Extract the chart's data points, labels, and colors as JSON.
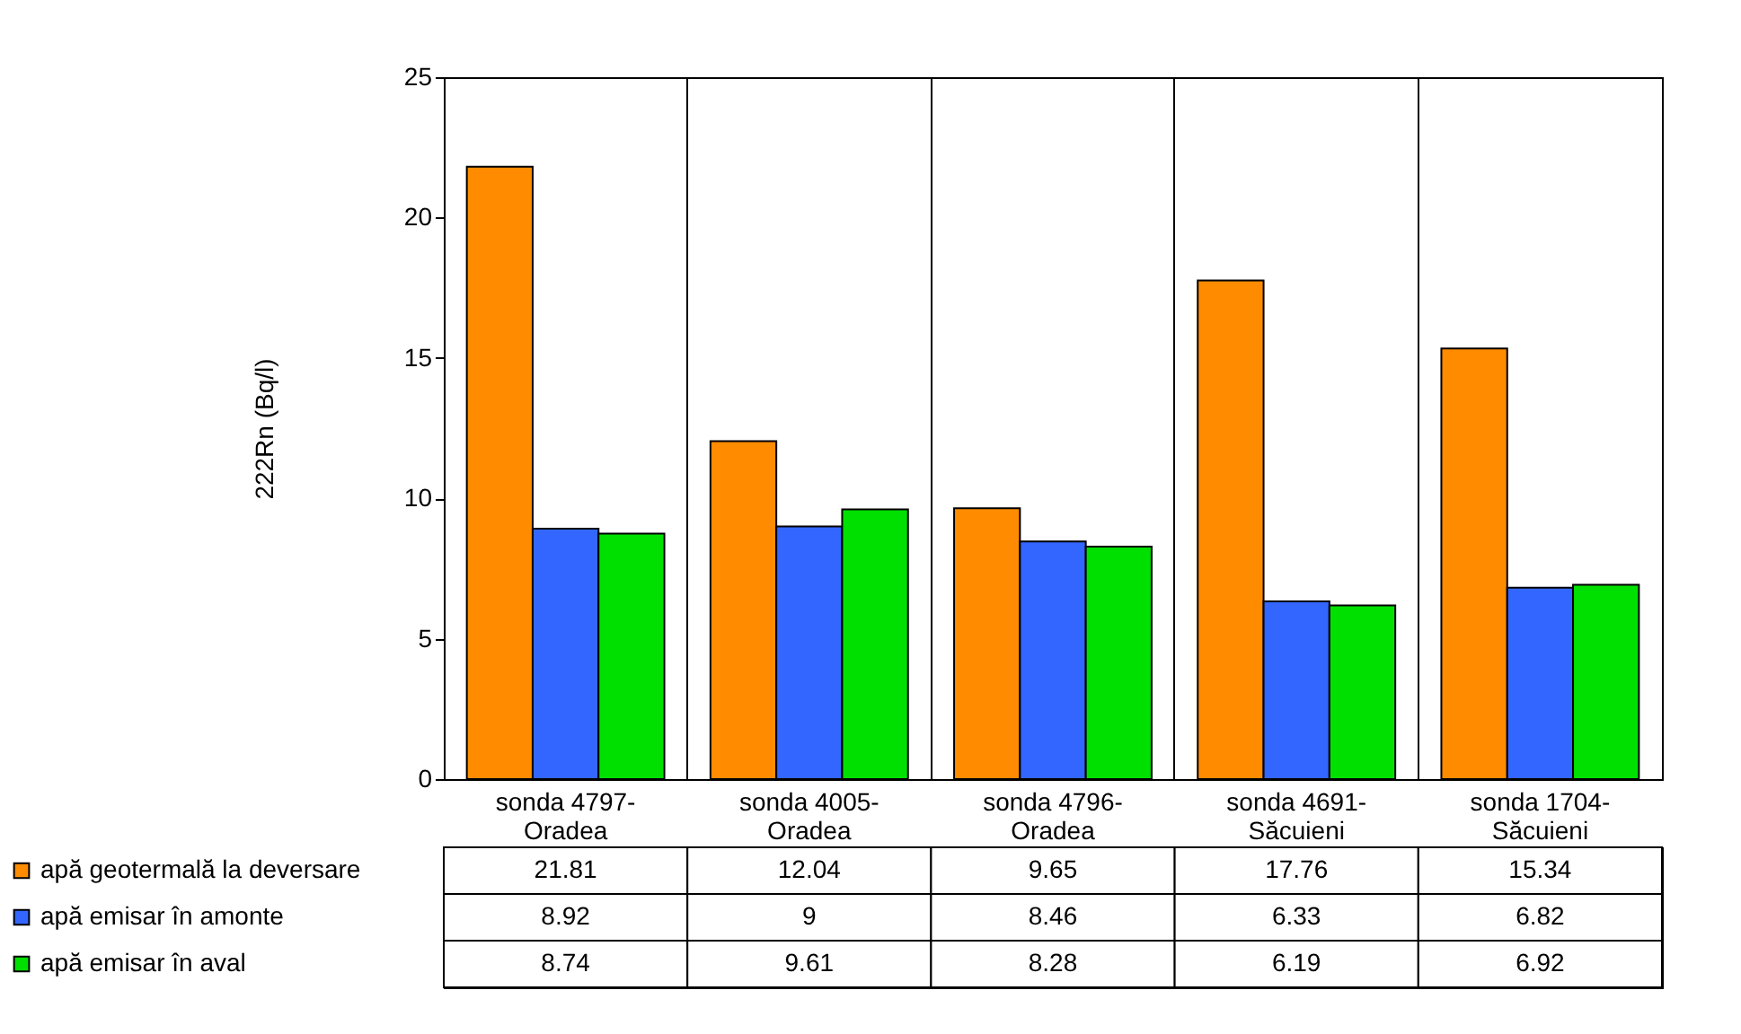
{
  "chart_data": {
    "type": "bar",
    "ylabel": "222Rn (Bq/l)",
    "categories": [
      "sonda 4797-Oradea",
      "sonda 4005-Oradea",
      "sonda 4796-Oradea",
      "sonda 4691-Săcuieni",
      "sonda 1704-Săcuieni"
    ],
    "series": [
      {
        "name": "apă geotermală la deversare",
        "color": "#ff8c00",
        "values": [
          21.81,
          12.04,
          9.65,
          17.76,
          15.34
        ]
      },
      {
        "name": "apă emisar în amonte",
        "color": "#3366ff",
        "values": [
          8.92,
          9,
          8.46,
          6.33,
          6.82
        ]
      },
      {
        "name": "apă emisar în aval",
        "color": "#00e000",
        "values": [
          8.74,
          9.61,
          8.28,
          6.19,
          6.92
        ]
      }
    ],
    "ylim": [
      0,
      25
    ],
    "yticks": [
      0,
      5,
      10,
      15,
      20,
      25
    ],
    "grid": "x",
    "legend": "bottom",
    "data_labels": true
  }
}
